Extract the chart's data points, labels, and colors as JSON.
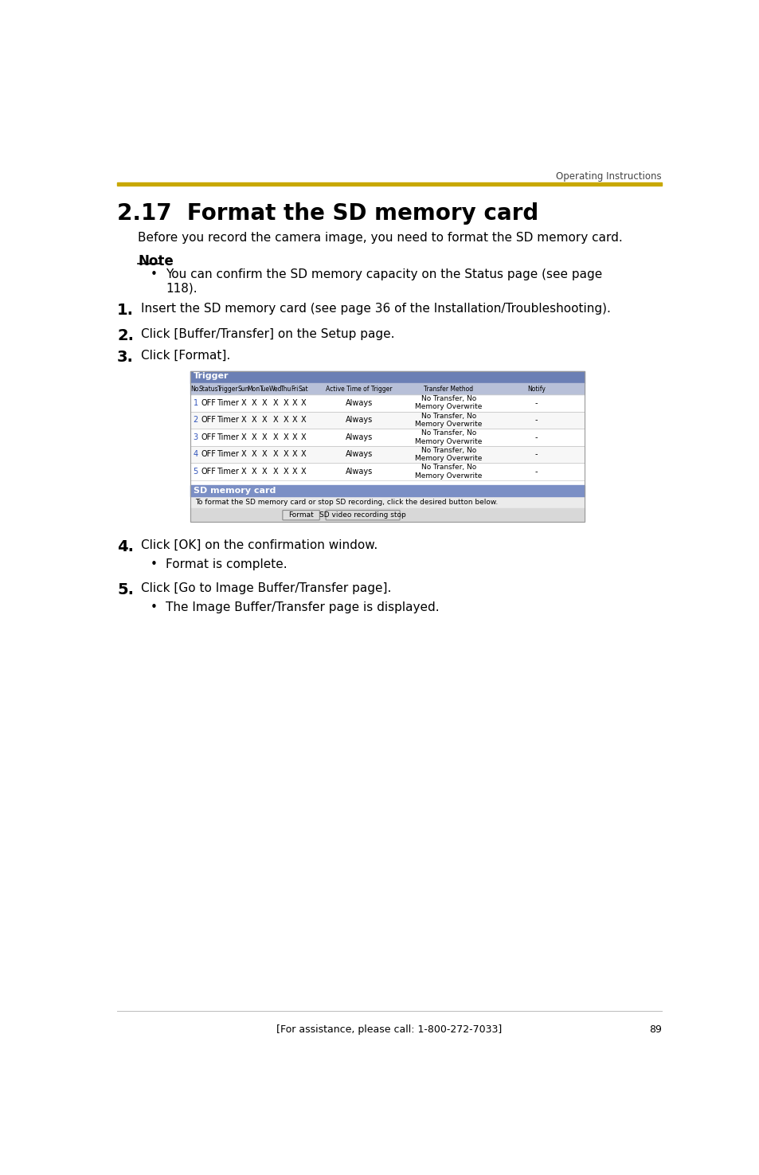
{
  "page_title": "Operating Instructions",
  "gold_bar_color": "#C8A800",
  "section_title": "2.17  Format the SD memory card",
  "intro_text": "Before you record the camera image, you need to format the SD memory card.",
  "note_label": "Note",
  "note_bullet": "You can confirm the SD memory capacity on the Status page (see page\n118).",
  "steps_before_table": [
    {
      "num": "1.",
      "text": "Insert the SD memory card (see page 36 of the Installation/Troubleshooting)."
    },
    {
      "num": "2.",
      "text": "Click [Buffer/Transfer] on the Setup page."
    },
    {
      "num": "3.",
      "text": "Click [Format]."
    }
  ],
  "steps_after_table": [
    {
      "num": "4.",
      "text": "Click [OK] on the confirmation window.",
      "bullet": "Format is complete."
    },
    {
      "num": "5.",
      "text": "Click [Go to Image Buffer/Transfer page].",
      "bullet": "The Image Buffer/Transfer page is displayed."
    }
  ],
  "table_header_bg": "#6B7FB5",
  "table_col_header_bg": "#B8C0D8",
  "table_section_bg": "#7B8FC5",
  "trigger_rows": [
    [
      "1",
      "OFF",
      "Timer",
      "X",
      "X",
      "X",
      "X",
      "X",
      "X",
      "X",
      "Always",
      "No Transfer, No\nMemory Overwrite",
      "-"
    ],
    [
      "2",
      "OFF",
      "Timer",
      "X",
      "X",
      "X",
      "X",
      "X",
      "X",
      "X",
      "Always",
      "No Transfer, No\nMemory Overwrite",
      "-"
    ],
    [
      "3",
      "OFF",
      "Timer",
      "X",
      "X",
      "X",
      "X",
      "X",
      "X",
      "X",
      "Always",
      "No Transfer, No\nMemory Overwrite",
      "-"
    ],
    [
      "4",
      "OFF",
      "Timer",
      "X",
      "X",
      "X",
      "X",
      "X",
      "X",
      "X",
      "Always",
      "No Transfer, No\nMemory Overwrite",
      "-"
    ],
    [
      "5",
      "OFF",
      "Timer",
      "X",
      "X",
      "X",
      "X",
      "X",
      "X",
      "X",
      "Always",
      "No Transfer, No\nMemory Overwrite",
      "-"
    ]
  ],
  "sd_section_label": "SD memory card",
  "sd_section_text": "To format the SD memory card or stop SD recording, click the desired button below.",
  "sd_buttons": [
    "Format",
    "SD video recording stop"
  ],
  "footer_text": "[For assistance, please call: 1-800-272-7033]",
  "page_number": "89",
  "background_color": "#FFFFFF",
  "text_color": "#000000"
}
